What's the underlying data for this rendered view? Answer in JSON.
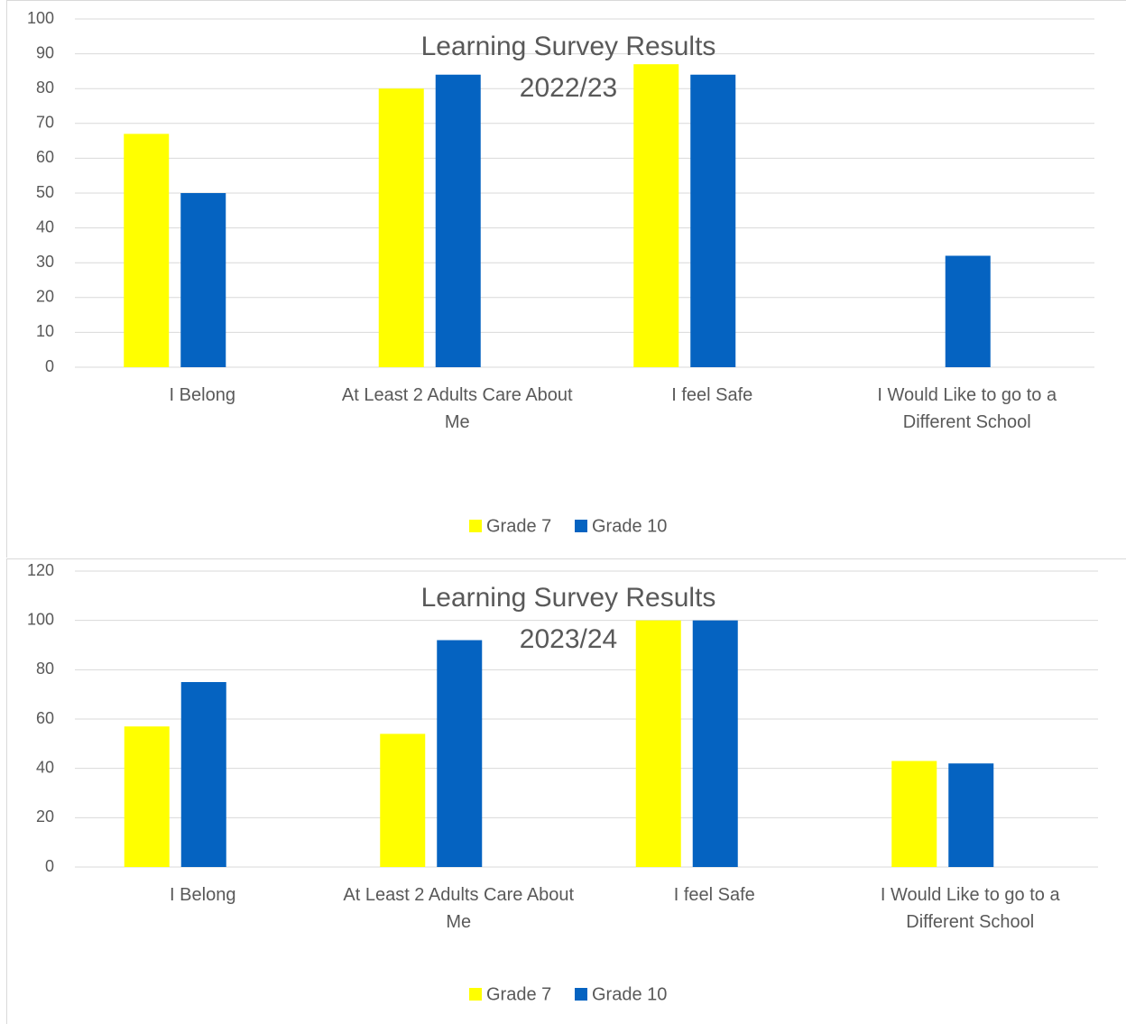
{
  "chart_data": [
    {
      "type": "bar",
      "title": "Learning Survey Results 2022/23",
      "categories": [
        "I Belong",
        "At Least 2 Adults Care About Me",
        "I feel Safe",
        "I Would Like to go to a Different School"
      ],
      "series": [
        {
          "name": "Grade 7",
          "color": "#ffff00",
          "values": [
            67,
            80,
            87,
            0
          ]
        },
        {
          "name": "Grade 10",
          "color": "#0563c1",
          "values": [
            50,
            84,
            84,
            32
          ]
        }
      ],
      "ylim": [
        0,
        100
      ],
      "yticks": [
        0,
        10,
        20,
        30,
        40,
        50,
        60,
        70,
        80,
        90,
        100
      ],
      "grid": true,
      "legend": "bottom"
    },
    {
      "type": "bar",
      "title": "Learning Survey Results 2023/24",
      "categories": [
        "I Belong",
        "At Least 2 Adults Care About Me",
        "I feel Safe",
        "I Would Like to go to a Different School"
      ],
      "series": [
        {
          "name": "Grade 7",
          "color": "#ffff00",
          "values": [
            57,
            54,
            100,
            43
          ]
        },
        {
          "name": "Grade 10",
          "color": "#0563c1",
          "values": [
            75,
            92,
            100,
            42
          ]
        }
      ],
      "ylim": [
        0,
        120
      ],
      "yticks": [
        0,
        20,
        40,
        60,
        80,
        100,
        120
      ],
      "grid": true,
      "legend": "bottom"
    }
  ]
}
